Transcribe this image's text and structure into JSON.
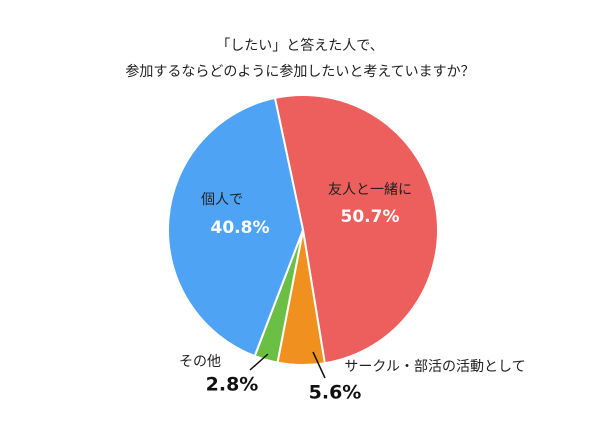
{
  "chart_data": {
    "type": "pie",
    "title": [
      "「したい」と答えた人で、",
      "参加するならどのように参加したいと考えていますか？"
    ],
    "categories": [
      "友人と一緒に",
      "サークル・部活の活動として",
      "その他",
      "個人で"
    ],
    "values": [
      50.7,
      5.6,
      2.8,
      40.8
    ],
    "value_labels": [
      "50.7%",
      "5.6%",
      "2.8%",
      "40.8%"
    ],
    "colors": [
      "#ec5f5c",
      "#f0901e",
      "#6cbf45",
      "#4ea3f5"
    ]
  }
}
